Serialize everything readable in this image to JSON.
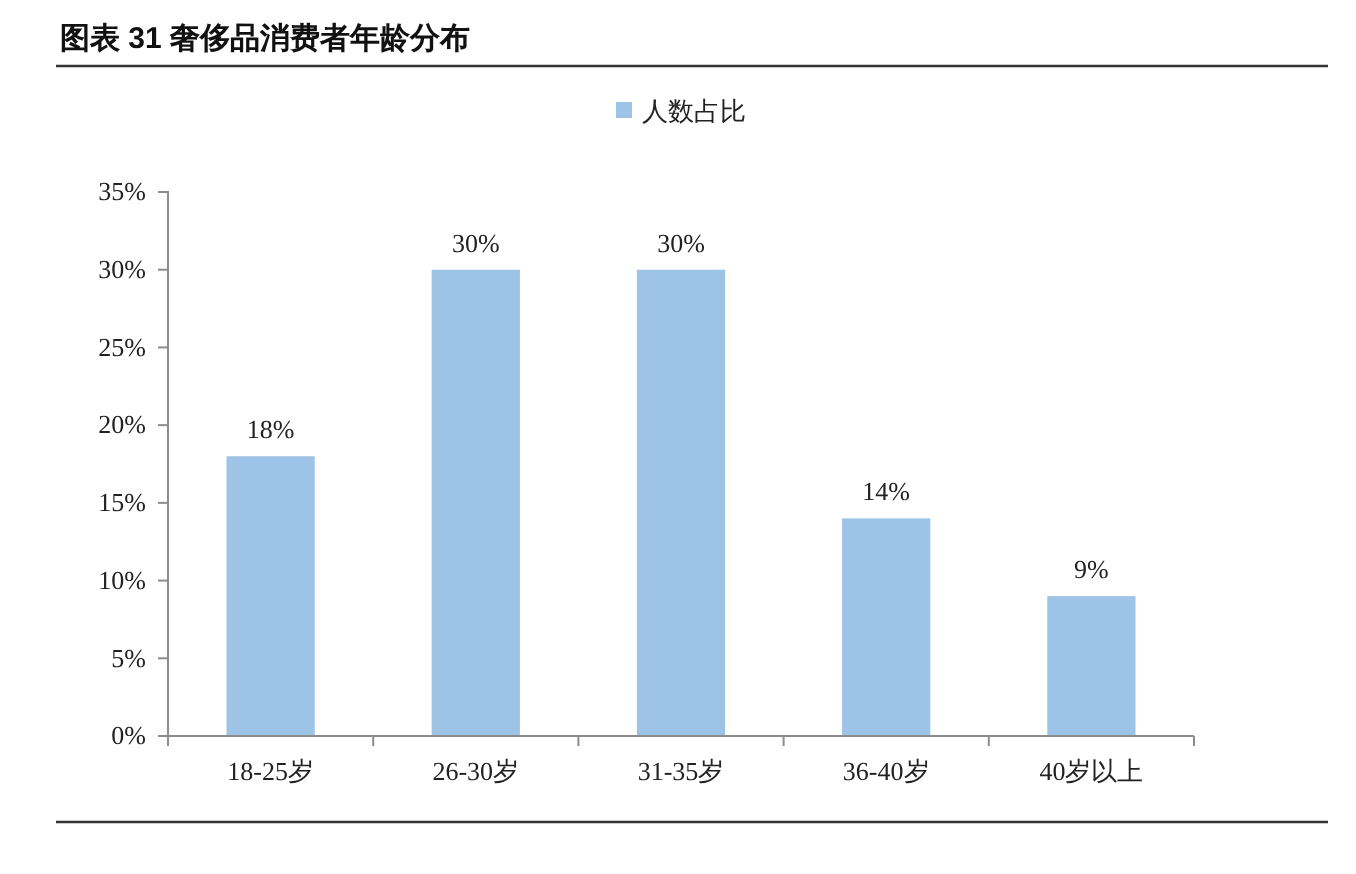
{
  "chart_data": {
    "type": "bar",
    "title": "图表 31 奢侈品消费者年龄分布",
    "categories": [
      "18-25岁",
      "26-30岁",
      "31-35岁",
      "36-40岁",
      "40岁以上"
    ],
    "series": [
      {
        "name": "人数占比",
        "color": "#9dc3e6",
        "values": [
          18,
          30,
          30,
          14,
          9
        ],
        "value_labels": [
          "18%",
          "30%",
          "30%",
          "14%",
          "9%"
        ]
      }
    ],
    "ylim": [
      0,
      35
    ],
    "yticks": [
      {
        "value": 0,
        "label": "0%"
      },
      {
        "value": 5,
        "label": "5%"
      },
      {
        "value": 10,
        "label": "10%"
      },
      {
        "value": 15,
        "label": "15%"
      },
      {
        "value": 20,
        "label": "20%"
      },
      {
        "value": 25,
        "label": "25%"
      },
      {
        "value": 30,
        "label": "30%"
      },
      {
        "value": 35,
        "label": "35%"
      }
    ],
    "grid": false,
    "legend": "top"
  }
}
